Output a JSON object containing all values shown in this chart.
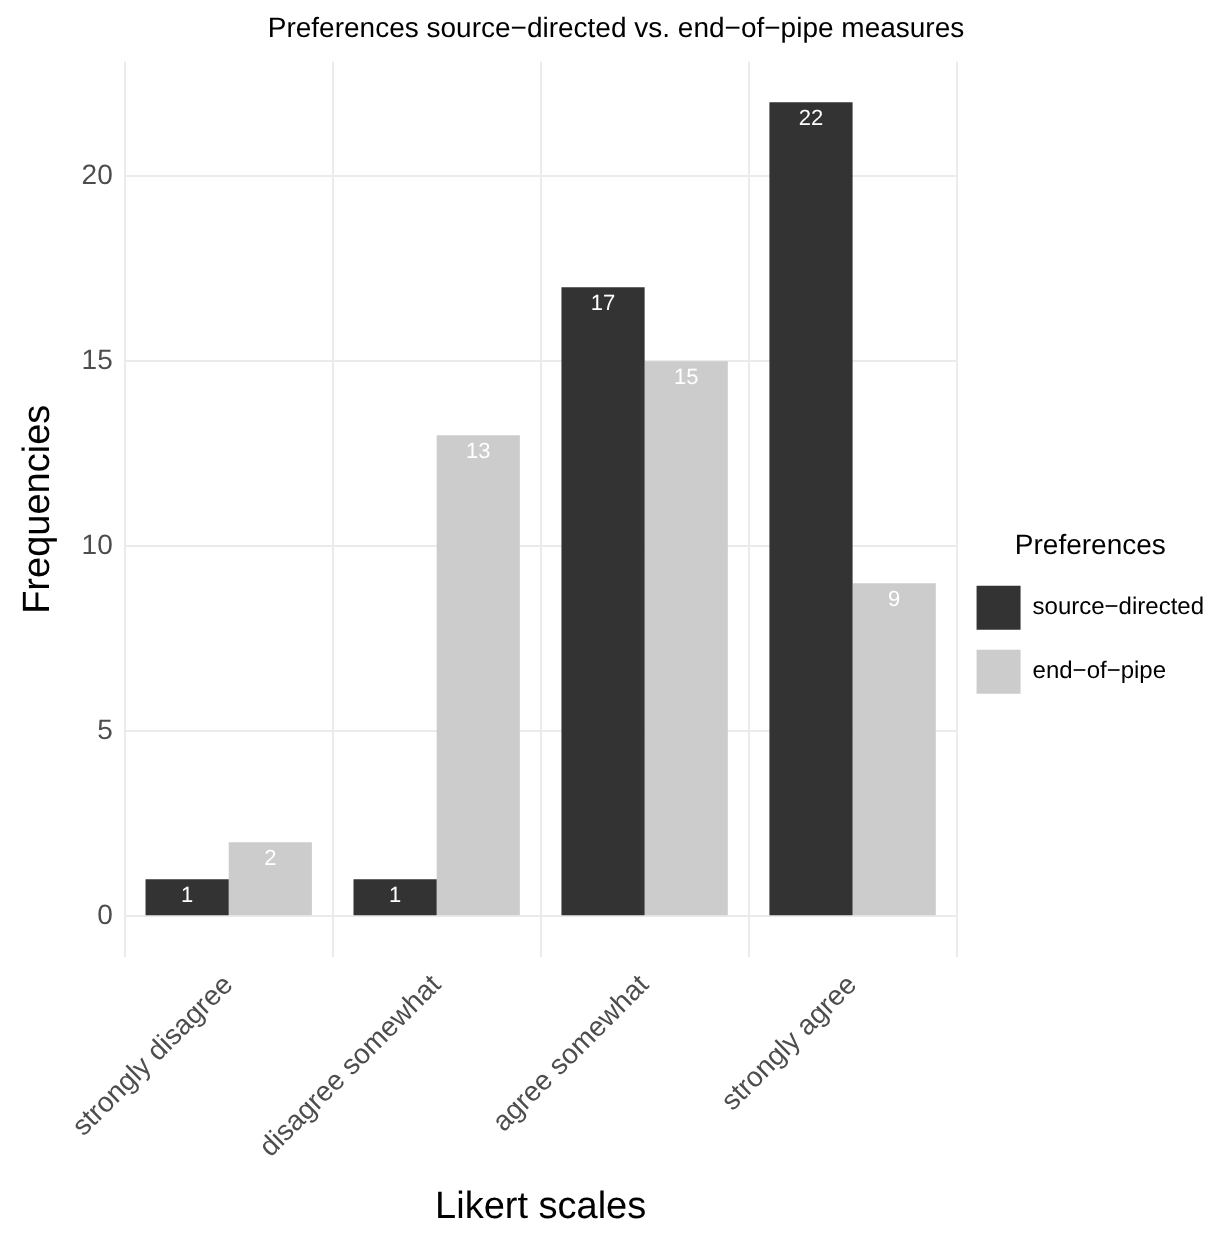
{
  "chart_data": {
    "type": "bar",
    "title": "Preferences source−directed vs. end−of−pipe measures",
    "xlabel": "Likert scales",
    "ylabel": "Frequencies",
    "legend_title": "Preferences",
    "categories": [
      "strongly disagree",
      "disagree somewhat",
      "agree somewhat",
      "strongly agree"
    ],
    "series": [
      {
        "name": "source−directed",
        "color": "#333333",
        "values": [
          1,
          1,
          17,
          22
        ]
      },
      {
        "name": "end−of−pipe",
        "color": "#cccccc",
        "values": [
          2,
          13,
          15,
          9
        ]
      }
    ],
    "ylim": [
      -1.1,
      23.1
    ],
    "yticks": [
      0,
      5,
      10,
      15,
      20
    ],
    "grid": true,
    "legend": "right",
    "data_labels": true
  }
}
